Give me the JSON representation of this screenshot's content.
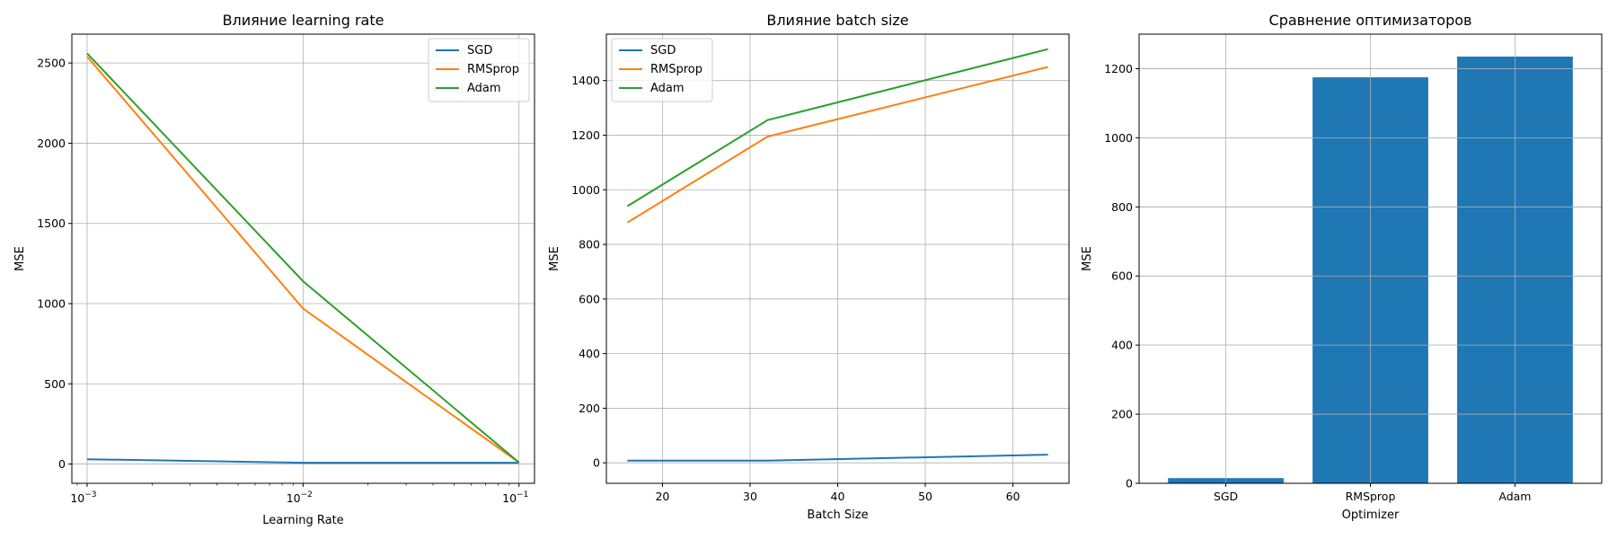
{
  "chart_data": [
    {
      "type": "line",
      "title": "Влияние learning rate",
      "xlabel": "Learning Rate",
      "ylabel": "MSE",
      "xscale": "log",
      "x": [
        0.001,
        0.01,
        0.1
      ],
      "xticks": [
        {
          "base": "10",
          "exp": "−3"
        },
        {
          "base": "10",
          "exp": "−2"
        },
        {
          "base": "10",
          "exp": "−1"
        }
      ],
      "xlim": [
        0.00085,
        0.118
      ],
      "ylim": [
        -120,
        2680
      ],
      "yticks": [
        "0",
        "500",
        "1000",
        "1500",
        "2000",
        "2500"
      ],
      "grid": true,
      "legend": "top-right",
      "series": [
        {
          "name": "SGD",
          "color": "#1f77b4",
          "values": [
            30,
            8,
            8
          ]
        },
        {
          "name": "RMSprop",
          "color": "#ff7f0e",
          "values": [
            2540,
            970,
            10
          ]
        },
        {
          "name": "Adam",
          "color": "#2ca02c",
          "values": [
            2560,
            1140,
            10
          ]
        }
      ]
    },
    {
      "type": "line",
      "title": "Влияние batch size",
      "xlabel": "Batch Size",
      "ylabel": "MSE",
      "x": [
        16,
        32,
        64
      ],
      "xticks": [
        "20",
        "30",
        "40",
        "50",
        "60"
      ],
      "xlim": [
        13.6,
        66.4
      ],
      "ylim": [
        -75,
        1570
      ],
      "yticks": [
        "0",
        "200",
        "400",
        "600",
        "800",
        "1000",
        "1200",
        "1400"
      ],
      "grid": true,
      "legend": "top-left",
      "series": [
        {
          "name": "SGD",
          "color": "#1f77b4",
          "values": [
            8,
            8,
            30
          ]
        },
        {
          "name": "RMSprop",
          "color": "#ff7f0e",
          "values": [
            880,
            1195,
            1450
          ]
        },
        {
          "name": "Adam",
          "color": "#2ca02c",
          "values": [
            940,
            1255,
            1515
          ]
        }
      ]
    },
    {
      "type": "bar",
      "title": "Сравнение оптимизаторов",
      "xlabel": "Optimizer",
      "ylabel": "MSE",
      "categories": [
        "SGD",
        "RMSprop",
        "Adam"
      ],
      "values": [
        15,
        1175,
        1235
      ],
      "color": "#1f77b4",
      "ylim": [
        0,
        1300
      ],
      "yticks": [
        "0",
        "200",
        "400",
        "600",
        "800",
        "1000",
        "1200"
      ],
      "grid": true
    }
  ]
}
